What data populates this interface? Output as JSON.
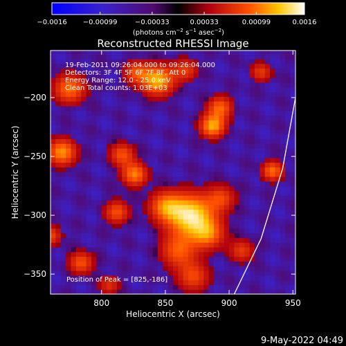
{
  "chart_data": {
    "type": "heatmap",
    "title": "Reconstructed RHESSI Image",
    "xlabel": "Heliocentric X (arcsec)",
    "ylabel": "Heliocentric Y (arcsec)",
    "xlim": [
      760,
      952
    ],
    "ylim": [
      -367,
      -160
    ],
    "x_ticks": [
      800,
      850,
      900,
      950
    ],
    "y_ticks": [
      -200,
      -250,
      -300,
      -350
    ],
    "colorbar": {
      "ticks": [
        -0.0016,
        -0.00099,
        -0.00033,
        0.00033,
        0.00099,
        0.0016
      ],
      "tick_labels": [
        "−0.0016",
        "−0.00099",
        "−0.00033",
        "0.00033",
        "0.00099",
        "0.0016"
      ],
      "label_main": "(photons cm",
      "label_sup1": "−2",
      "label_mid1": " s",
      "label_sup2": "−1",
      "label_mid2": " asec",
      "label_sup3": "−2",
      "label_end": ")",
      "range": [
        -0.0016,
        0.0016
      ]
    },
    "annotations": {
      "time_range": "19-Feb-2011 09:26:04.000 to 09:26:04.000",
      "detectors": "Detectors: 3F 4F 5F 6F 7F 8F, Att 0",
      "energy": "Energy Range: 12.0 - 25.0 keV",
      "clean": "Clean     Total counts: 1.03E+03",
      "peak": "Position of Peak = [825,-186]"
    },
    "sources": [
      {
        "x": 870,
        "y": -300,
        "amp": 1.0,
        "sigma": 13
      },
      {
        "x": 850,
        "y": -292,
        "amp": 0.6,
        "sigma": 9
      },
      {
        "x": 884,
        "y": -316,
        "amp": 0.55,
        "sigma": 9
      },
      {
        "x": 860,
        "y": -330,
        "amp": 0.55,
        "sigma": 10
      },
      {
        "x": 872,
        "y": -352,
        "amp": 0.5,
        "sigma": 9
      },
      {
        "x": 894,
        "y": -285,
        "amp": 0.45,
        "sigma": 8
      },
      {
        "x": 844,
        "y": -185,
        "amp": 0.85,
        "sigma": 9
      },
      {
        "x": 827,
        "y": -178,
        "amp": 0.5,
        "sigma": 7
      },
      {
        "x": 866,
        "y": -176,
        "amp": 0.45,
        "sigma": 7
      },
      {
        "x": 775,
        "y": -192,
        "amp": 0.65,
        "sigma": 9
      },
      {
        "x": 769,
        "y": -246,
        "amp": 0.75,
        "sigma": 8
      },
      {
        "x": 816,
        "y": -248,
        "amp": 0.55,
        "sigma": 7
      },
      {
        "x": 826,
        "y": -265,
        "amp": 0.7,
        "sigma": 7
      },
      {
        "x": 812,
        "y": -297,
        "amp": 0.55,
        "sigma": 7
      },
      {
        "x": 887,
        "y": -224,
        "amp": 0.8,
        "sigma": 7
      },
      {
        "x": 893,
        "y": -208,
        "amp": 0.6,
        "sigma": 7
      },
      {
        "x": 934,
        "y": -262,
        "amp": 0.65,
        "sigma": 6
      },
      {
        "x": 925,
        "y": -178,
        "amp": 0.45,
        "sigma": 6
      },
      {
        "x": 784,
        "y": -340,
        "amp": 0.55,
        "sigma": 7
      },
      {
        "x": 760,
        "y": -317,
        "amp": 0.5,
        "sigma": 6
      },
      {
        "x": 910,
        "y": -330,
        "amp": 0.45,
        "sigma": 7
      },
      {
        "x": 806,
        "y": -359,
        "amp": 0.4,
        "sigma": 6
      }
    ],
    "grid_step_arcsec": 4,
    "grid": false,
    "limb_curve": [
      [
        904,
        -367
      ],
      [
        925,
        -320
      ],
      [
        942,
        -260
      ],
      [
        952,
        -200
      ]
    ]
  },
  "footer": {
    "date": "9-May-2022 04:49"
  }
}
